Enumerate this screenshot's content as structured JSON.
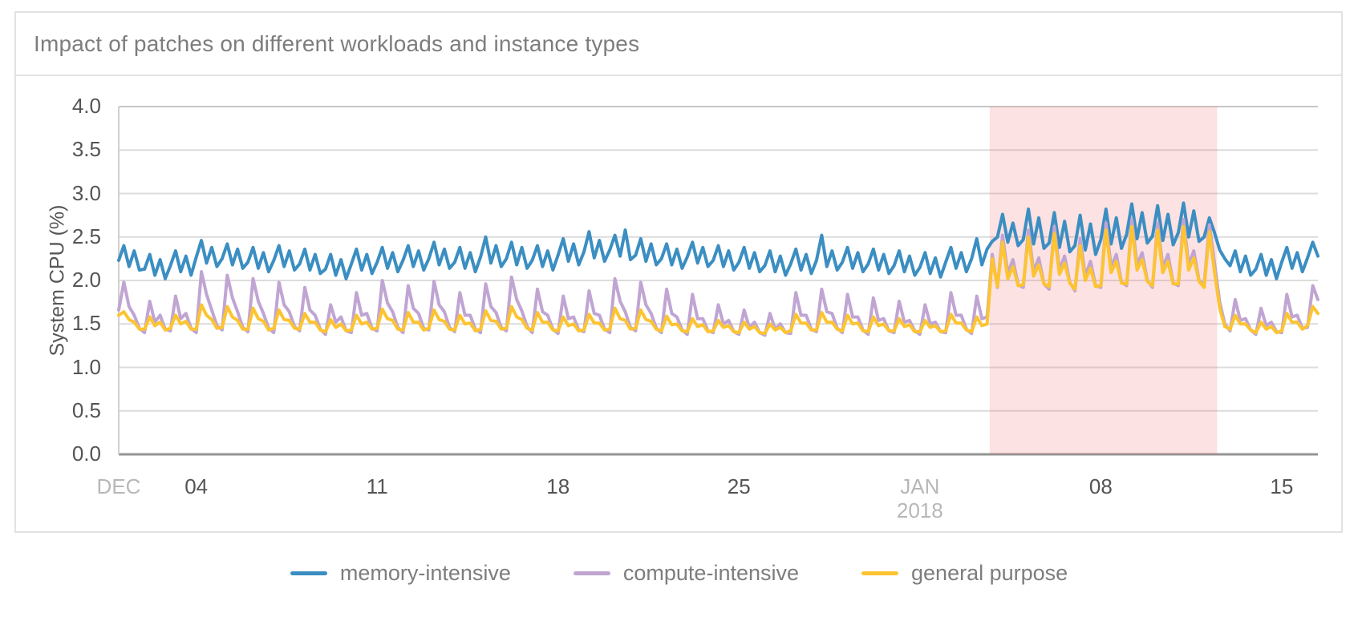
{
  "card": {
    "title": "Impact of patches on different workloads and instance types"
  },
  "y_axis": {
    "title": "System CPU (%)",
    "ticks": [
      "4.0",
      "3.5",
      "3.0",
      "2.5",
      "2.0",
      "1.5",
      "1.0",
      "0.5",
      "0.0"
    ]
  },
  "x_axis": {
    "ticks": [
      {
        "label": "DEC",
        "day": 0,
        "muted": true
      },
      {
        "label": "04",
        "day": 3,
        "muted": false
      },
      {
        "label": "11",
        "day": 10,
        "muted": false
      },
      {
        "label": "18",
        "day": 17,
        "muted": false
      },
      {
        "label": "25",
        "day": 24,
        "muted": false
      },
      {
        "label": "JAN",
        "day": 31,
        "muted": true,
        "sub": "2018"
      },
      {
        "label": "08",
        "day": 38,
        "muted": false
      },
      {
        "label": "15",
        "day": 45,
        "muted": false
      }
    ]
  },
  "legend": [
    {
      "label": "memory-intensive",
      "color": "#3b8ec2"
    },
    {
      "label": "compute-intensive",
      "color": "#c0a5d3"
    },
    {
      "label": "general purpose",
      "color": "#fdc431"
    }
  ],
  "chart_data": {
    "type": "line",
    "title": "Impact of patches on different workloads and instance types",
    "ylabel": "System CPU (%)",
    "ylim": [
      0,
      4
    ],
    "y_gridline_step": 0.5,
    "x_unit": "days since Dec 01 00:00 (year boundary 2017-12 to 2018-01), 5 samples per day",
    "x_range_days": [
      0,
      46.4
    ],
    "samples_per_day": 5,
    "x_tick_days": [
      0,
      3,
      10,
      17,
      24,
      31,
      38,
      45
    ],
    "x_tick_labels": [
      "DEC",
      "04",
      "11",
      "18",
      "25",
      "JAN 2018",
      "08",
      "15"
    ],
    "grid": true,
    "legend_position": "bottom-center",
    "highlight_region": {
      "start_day": 33.7,
      "end_day": 42.5,
      "color": "rgba(240,110,110,0.20)",
      "meaning": "patch window (approx Jan 04 - Jan 12)"
    },
    "series": [
      {
        "name": "memory-intensive",
        "color": "#3b8ec2",
        "values": [
          2.23,
          2.4,
          2.16,
          2.34,
          2.12,
          2.13,
          2.3,
          2.06,
          2.24,
          2.02,
          2.17,
          2.34,
          2.1,
          2.28,
          2.06,
          2.27,
          2.46,
          2.2,
          2.38,
          2.16,
          2.25,
          2.42,
          2.18,
          2.36,
          2.14,
          2.21,
          2.38,
          2.14,
          2.32,
          2.1,
          2.23,
          2.4,
          2.16,
          2.34,
          2.12,
          2.19,
          2.36,
          2.12,
          2.3,
          2.08,
          2.13,
          2.3,
          2.06,
          2.24,
          2.02,
          2.19,
          2.36,
          2.12,
          2.3,
          2.08,
          2.21,
          2.38,
          2.14,
          2.32,
          2.1,
          2.23,
          2.4,
          2.16,
          2.34,
          2.12,
          2.25,
          2.44,
          2.18,
          2.36,
          2.14,
          2.21,
          2.38,
          2.14,
          2.32,
          2.1,
          2.27,
          2.5,
          2.2,
          2.4,
          2.16,
          2.25,
          2.44,
          2.18,
          2.38,
          2.14,
          2.23,
          2.4,
          2.16,
          2.34,
          2.12,
          2.29,
          2.48,
          2.22,
          2.42,
          2.18,
          2.33,
          2.56,
          2.26,
          2.46,
          2.22,
          2.35,
          2.52,
          2.28,
          2.58,
          2.24,
          2.29,
          2.48,
          2.22,
          2.42,
          2.18,
          2.25,
          2.42,
          2.18,
          2.36,
          2.14,
          2.27,
          2.44,
          2.2,
          2.38,
          2.16,
          2.23,
          2.4,
          2.16,
          2.34,
          2.12,
          2.21,
          2.38,
          2.14,
          2.32,
          2.1,
          2.17,
          2.34,
          2.1,
          2.28,
          2.06,
          2.19,
          2.36,
          2.12,
          2.3,
          2.08,
          2.23,
          2.52,
          2.16,
          2.34,
          2.12,
          2.21,
          2.38,
          2.14,
          2.32,
          2.1,
          2.19,
          2.36,
          2.12,
          2.3,
          2.08,
          2.17,
          2.34,
          2.1,
          2.28,
          2.06,
          2.15,
          2.32,
          2.08,
          2.26,
          2.04,
          2.21,
          2.38,
          2.14,
          2.32,
          2.1,
          2.25,
          2.48,
          2.18,
          2.36,
          2.45,
          2.5,
          2.76,
          2.44,
          2.66,
          2.4,
          2.47,
          2.82,
          2.42,
          2.72,
          2.37,
          2.43,
          2.78,
          2.38,
          2.68,
          2.33,
          2.4,
          2.75,
          2.35,
          2.65,
          2.3,
          2.47,
          2.82,
          2.42,
          2.72,
          2.37,
          2.53,
          2.88,
          2.48,
          2.78,
          2.43,
          2.51,
          2.86,
          2.46,
          2.76,
          2.41,
          2.55,
          2.89,
          2.5,
          2.8,
          2.45,
          2.5,
          2.72,
          2.55,
          2.35,
          2.25,
          2.17,
          2.34,
          2.1,
          2.28,
          2.06,
          2.13,
          2.3,
          2.06,
          2.24,
          2.02,
          2.21,
          2.38,
          2.14,
          2.32,
          2.1,
          2.26,
          2.44,
          2.28
        ]
      },
      {
        "name": "compute-intensive",
        "color": "#c0a5d3",
        "values": [
          1.66,
          1.98,
          1.7,
          1.6,
          1.45,
          1.4,
          1.76,
          1.52,
          1.6,
          1.44,
          1.42,
          1.82,
          1.56,
          1.62,
          1.45,
          1.4,
          2.1,
          1.84,
          1.66,
          1.48,
          1.43,
          2.06,
          1.8,
          1.64,
          1.46,
          1.41,
          2.02,
          1.76,
          1.62,
          1.45,
          1.4,
          1.98,
          1.72,
          1.64,
          1.47,
          1.42,
          1.92,
          1.66,
          1.6,
          1.44,
          1.38,
          1.72,
          1.52,
          1.58,
          1.42,
          1.4,
          1.86,
          1.6,
          1.62,
          1.45,
          1.42,
          2.0,
          1.74,
          1.64,
          1.46,
          1.4,
          1.94,
          1.68,
          1.62,
          1.45,
          1.43,
          1.99,
          1.72,
          1.64,
          1.46,
          1.41,
          1.86,
          1.6,
          1.6,
          1.44,
          1.4,
          1.96,
          1.7,
          1.63,
          1.46,
          1.42,
          2.04,
          1.78,
          1.65,
          1.47,
          1.4,
          1.9,
          1.64,
          1.6,
          1.44,
          1.39,
          1.82,
          1.56,
          1.58,
          1.43,
          1.41,
          1.88,
          1.62,
          1.6,
          1.44,
          1.4,
          2.02,
          1.76,
          1.64,
          1.46,
          1.42,
          1.98,
          1.72,
          1.62,
          1.45,
          1.4,
          1.9,
          1.62,
          1.58,
          1.43,
          1.38,
          1.84,
          1.56,
          1.56,
          1.42,
          1.4,
          1.72,
          1.5,
          1.54,
          1.41,
          1.38,
          1.66,
          1.46,
          1.52,
          1.4,
          1.37,
          1.62,
          1.44,
          1.5,
          1.4,
          1.39,
          1.86,
          1.6,
          1.6,
          1.44,
          1.41,
          1.9,
          1.64,
          1.62,
          1.45,
          1.4,
          1.84,
          1.58,
          1.58,
          1.43,
          1.38,
          1.8,
          1.54,
          1.56,
          1.42,
          1.4,
          1.76,
          1.52,
          1.54,
          1.42,
          1.38,
          1.72,
          1.5,
          1.52,
          1.41,
          1.4,
          1.86,
          1.6,
          1.6,
          1.44,
          1.39,
          1.82,
          1.56,
          1.58,
          2.3,
          1.92,
          2.52,
          2.08,
          2.24,
          1.95,
          1.92,
          2.58,
          2.1,
          2.26,
          1.96,
          1.9,
          2.62,
          2.12,
          2.28,
          1.98,
          1.88,
          2.48,
          2.05,
          2.22,
          1.94,
          1.92,
          2.66,
          2.15,
          2.3,
          1.98,
          1.94,
          2.7,
          2.18,
          2.32,
          2.0,
          1.92,
          2.66,
          2.15,
          2.3,
          1.97,
          1.94,
          2.7,
          2.18,
          2.34,
          2.0,
          1.95,
          2.64,
          2.2,
          1.75,
          1.5,
          1.42,
          1.78,
          1.54,
          1.56,
          1.43,
          1.38,
          1.68,
          1.48,
          1.52,
          1.41,
          1.4,
          1.84,
          1.58,
          1.6,
          1.45,
          1.46,
          1.94,
          1.78
        ]
      },
      {
        "name": "general purpose",
        "color": "#fdc431",
        "values": [
          1.6,
          1.64,
          1.55,
          1.52,
          1.44,
          1.44,
          1.58,
          1.48,
          1.52,
          1.43,
          1.45,
          1.6,
          1.5,
          1.53,
          1.44,
          1.44,
          1.72,
          1.6,
          1.55,
          1.45,
          1.46,
          1.7,
          1.58,
          1.54,
          1.44,
          1.44,
          1.68,
          1.56,
          1.53,
          1.43,
          1.45,
          1.66,
          1.55,
          1.54,
          1.45,
          1.44,
          1.62,
          1.52,
          1.52,
          1.43,
          1.41,
          1.55,
          1.46,
          1.5,
          1.42,
          1.43,
          1.6,
          1.5,
          1.52,
          1.44,
          1.45,
          1.67,
          1.56,
          1.54,
          1.44,
          1.43,
          1.63,
          1.52,
          1.52,
          1.43,
          1.45,
          1.66,
          1.55,
          1.53,
          1.44,
          1.43,
          1.6,
          1.5,
          1.51,
          1.42,
          1.44,
          1.65,
          1.54,
          1.53,
          1.44,
          1.45,
          1.7,
          1.58,
          1.55,
          1.45,
          1.43,
          1.63,
          1.52,
          1.52,
          1.43,
          1.42,
          1.58,
          1.48,
          1.5,
          1.42,
          1.43,
          1.61,
          1.51,
          1.51,
          1.43,
          1.44,
          1.68,
          1.56,
          1.54,
          1.44,
          1.45,
          1.66,
          1.55,
          1.53,
          1.44,
          1.42,
          1.59,
          1.49,
          1.5,
          1.42,
          1.41,
          1.56,
          1.47,
          1.49,
          1.41,
          1.42,
          1.54,
          1.46,
          1.48,
          1.41,
          1.4,
          1.52,
          1.44,
          1.47,
          1.4,
          1.39,
          1.5,
          1.43,
          1.46,
          1.4,
          1.42,
          1.61,
          1.51,
          1.51,
          1.43,
          1.43,
          1.63,
          1.52,
          1.52,
          1.44,
          1.42,
          1.6,
          1.5,
          1.51,
          1.42,
          1.41,
          1.58,
          1.48,
          1.5,
          1.42,
          1.42,
          1.56,
          1.47,
          1.49,
          1.41,
          1.41,
          1.54,
          1.46,
          1.48,
          1.41,
          1.42,
          1.61,
          1.51,
          1.51,
          1.43,
          1.41,
          1.58,
          1.48,
          1.5,
          2.25,
          1.93,
          2.44,
          2.02,
          2.16,
          1.94,
          1.95,
          2.5,
          2.05,
          2.18,
          1.96,
          1.93,
          2.54,
          2.07,
          2.2,
          1.97,
          1.9,
          2.4,
          2.0,
          2.14,
          1.93,
          1.94,
          2.58,
          2.09,
          2.22,
          1.97,
          1.96,
          2.62,
          2.12,
          2.24,
          1.99,
          1.94,
          2.58,
          2.09,
          2.22,
          1.96,
          1.96,
          2.62,
          2.12,
          2.26,
          1.99,
          1.92,
          2.56,
          2.1,
          1.68,
          1.47,
          1.44,
          1.6,
          1.5,
          1.5,
          1.43,
          1.4,
          1.52,
          1.44,
          1.47,
          1.4,
          1.42,
          1.62,
          1.52,
          1.52,
          1.44,
          1.48,
          1.7,
          1.62
        ]
      }
    ]
  }
}
